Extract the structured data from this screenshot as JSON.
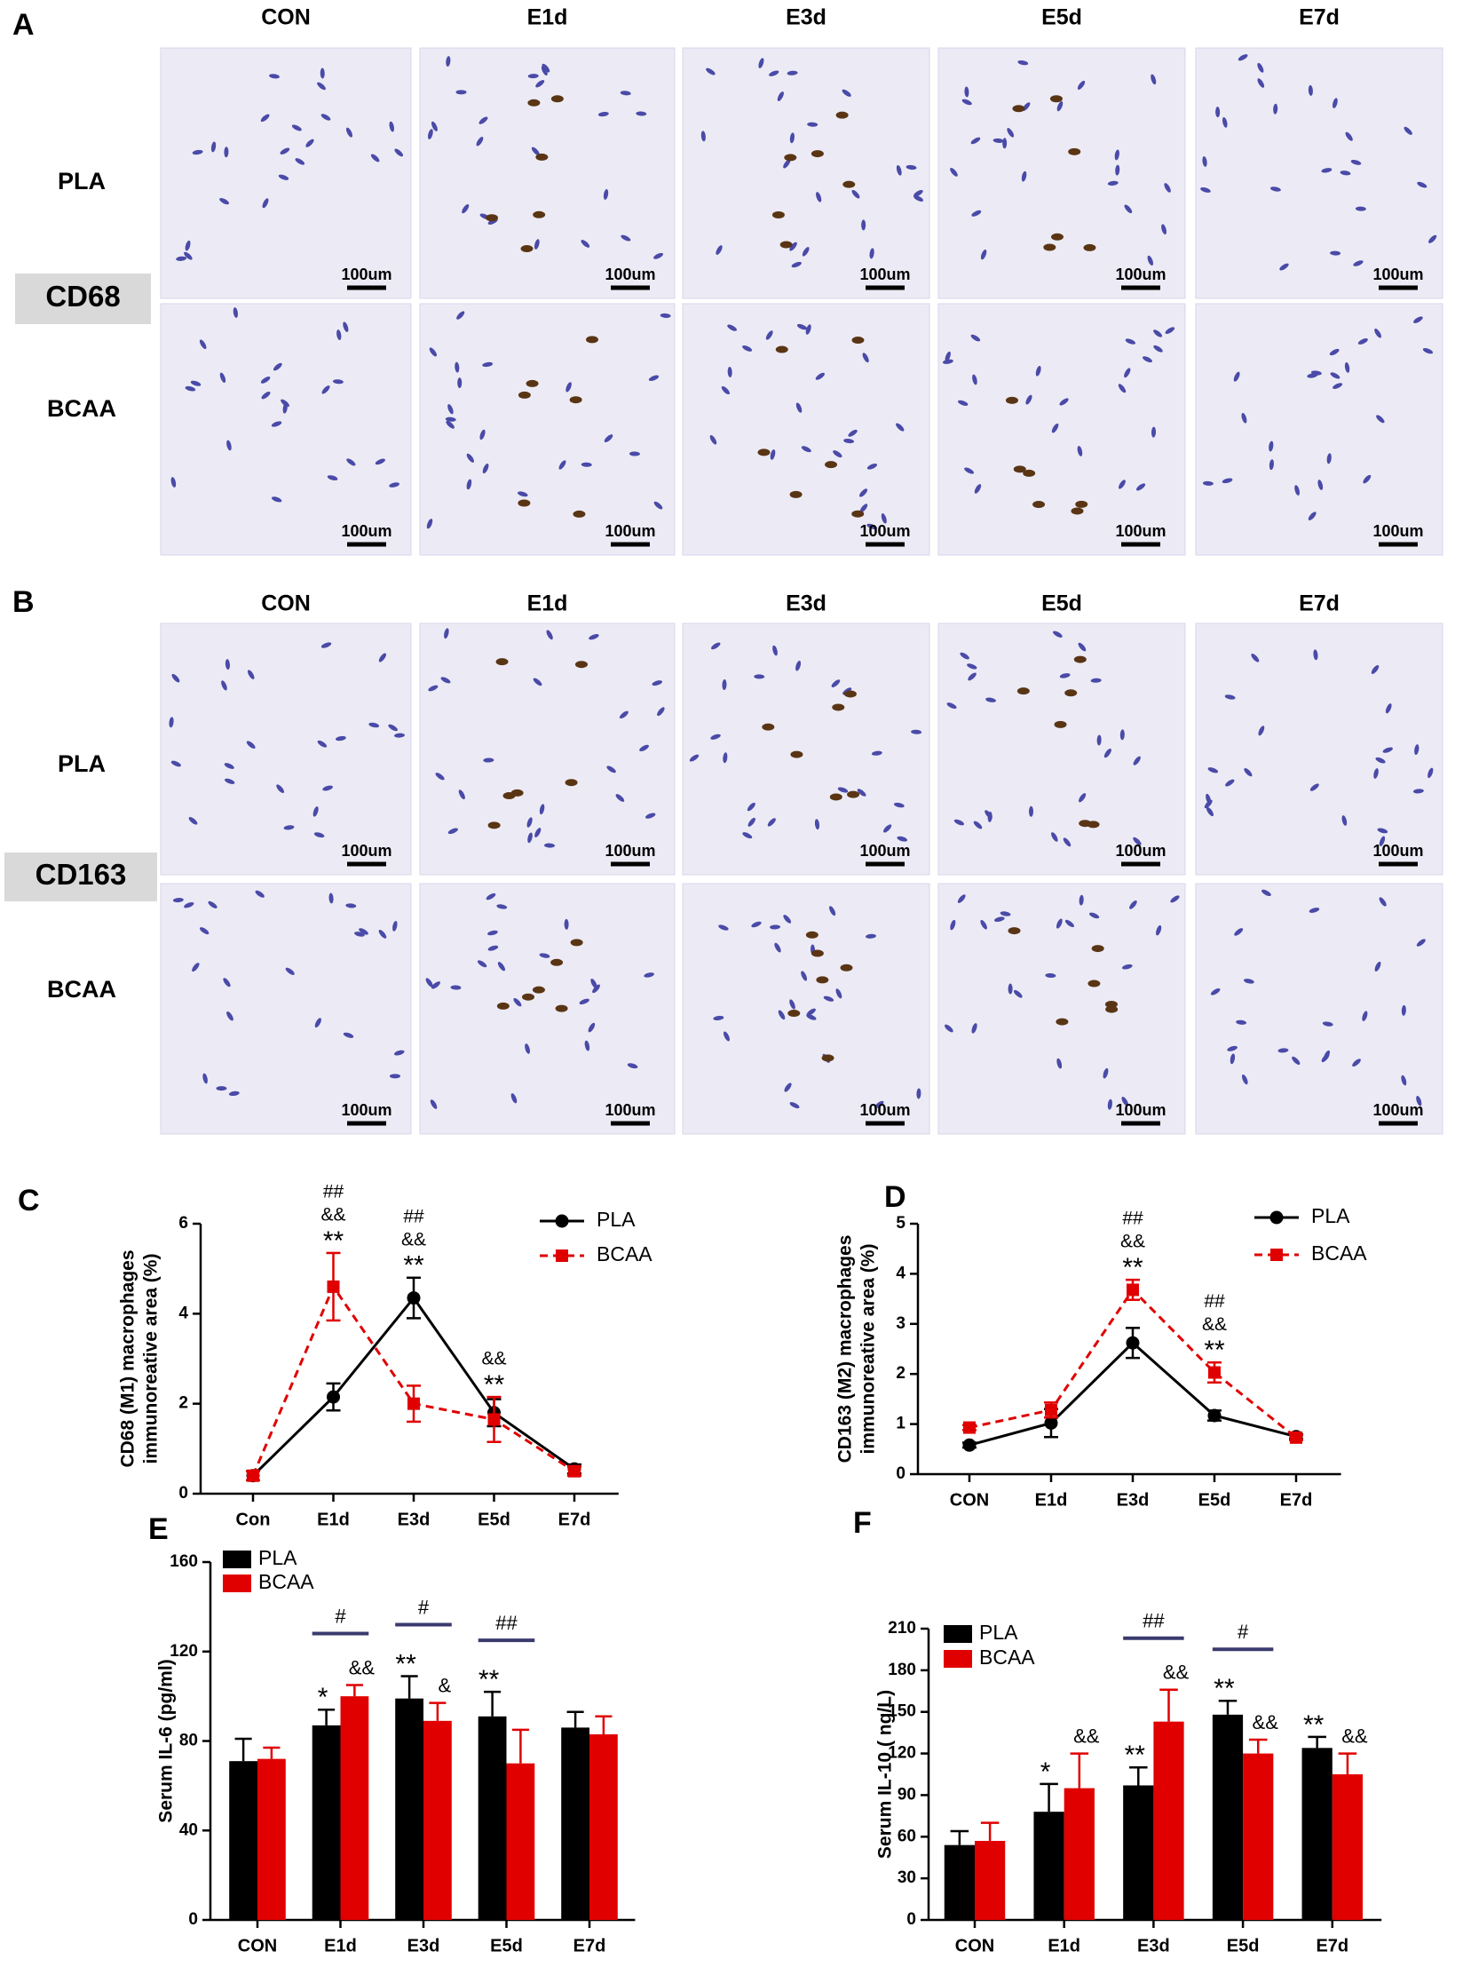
{
  "panel_labels": [
    "A",
    "B",
    "C",
    "D",
    "E",
    "F"
  ],
  "micrographs": {
    "columns": [
      "CON",
      "E1d",
      "E3d",
      "E5d",
      "E7d"
    ],
    "rows": [
      "PLA",
      "BCAA"
    ],
    "markers": [
      "CD68",
      "CD163"
    ],
    "scale_bar": "100um"
  },
  "chart_data": [
    {
      "type": "line",
      "y_label": [
        "CD68 (M1) macrophages",
        "immunoreative area (%)"
      ],
      "categories": [
        "Con",
        "E1d",
        "E3d",
        "E5d",
        "E7d"
      ],
      "ylim": [
        0,
        6
      ],
      "yticks": [
        0,
        2,
        4,
        6
      ],
      "series": [
        {
          "name": "PLA",
          "color": "#000000",
          "linestyle": "solid",
          "marker": "circle",
          "values": [
            0.4,
            2.15,
            4.35,
            1.8,
            0.55
          ],
          "errors": [
            0.1,
            0.3,
            0.45,
            0.3,
            0.1
          ]
        },
        {
          "name": "BCAA",
          "color": "#e00000",
          "linestyle": "dashed",
          "marker": "square",
          "values": [
            0.4,
            4.6,
            2.0,
            1.65,
            0.5
          ],
          "errors": [
            0.1,
            0.75,
            0.4,
            0.5,
            0.1
          ]
        }
      ],
      "annotations": [
        null,
        [
          "##",
          "&&",
          "**"
        ],
        [
          "##",
          "&&",
          "**"
        ],
        [
          "&&",
          "**"
        ],
        null
      ]
    },
    {
      "type": "line",
      "y_label": [
        "CD163 (M2) macrophages",
        "immunoreative area (%)"
      ],
      "categories": [
        "CON",
        "E1d",
        "E3d",
        "E5d",
        "E7d"
      ],
      "ylim": [
        0,
        5
      ],
      "yticks": [
        0,
        1,
        2,
        3,
        4,
        5
      ],
      "series": [
        {
          "name": "PLA",
          "color": "#000000",
          "linestyle": "solid",
          "marker": "circle",
          "values": [
            0.58,
            1.02,
            2.62,
            1.17,
            0.75
          ],
          "errors": [
            0.05,
            0.28,
            0.3,
            0.1,
            0.05
          ]
        },
        {
          "name": "BCAA",
          "color": "#e00000",
          "linestyle": "dashed",
          "marker": "square",
          "values": [
            0.93,
            1.28,
            3.68,
            2.03,
            0.73
          ],
          "errors": [
            0.05,
            0.15,
            0.2,
            0.2,
            0.05
          ]
        }
      ],
      "annotations": [
        null,
        null,
        [
          "##",
          "&&",
          "**"
        ],
        [
          "##",
          "&&",
          "**"
        ],
        null
      ]
    },
    {
      "type": "bar",
      "y_label": [
        "Serum IL-6 (pg/ml)"
      ],
      "categories": [
        "CON",
        "E1d",
        "E3d",
        "E5d",
        "E7d"
      ],
      "ylim": [
        0,
        160
      ],
      "yticks": [
        0,
        40,
        80,
        120,
        160
      ],
      "series": [
        {
          "name": "PLA",
          "color": "#000000",
          "values": [
            71,
            87,
            99,
            91,
            86
          ],
          "errors": [
            10,
            7,
            10,
            11,
            7
          ],
          "annotations": [
            null,
            "*",
            "**",
            "**",
            null
          ]
        },
        {
          "name": "BCAA",
          "color": "#e00000",
          "values": [
            72,
            100,
            89,
            70,
            83
          ],
          "errors": [
            5,
            5,
            8,
            15,
            8
          ],
          "annotations": [
            null,
            "&&",
            "&",
            null,
            null
          ]
        }
      ],
      "brackets": [
        null,
        "#",
        "#",
        "##",
        null
      ]
    },
    {
      "type": "bar",
      "y_label": [
        "Serum IL-10 ( ng/L)"
      ],
      "categories": [
        "CON",
        "E1d",
        "E3d",
        "E5d",
        "E7d"
      ],
      "ylim": [
        0,
        210
      ],
      "yticks": [
        0,
        30,
        60,
        90,
        120,
        150,
        180,
        210
      ],
      "series": [
        {
          "name": "PLA",
          "color": "#000000",
          "values": [
            54,
            78,
            97,
            148,
            124
          ],
          "errors": [
            10,
            20,
            13,
            10,
            8
          ],
          "annotations": [
            null,
            "*",
            "**",
            "**",
            "**"
          ]
        },
        {
          "name": "BCAA",
          "color": "#e00000",
          "values": [
            57,
            95,
            143,
            120,
            105
          ],
          "errors": [
            13,
            25,
            23,
            10,
            15
          ],
          "annotations": [
            null,
            "&&",
            "&&",
            "&&",
            "&&"
          ]
        }
      ],
      "brackets": [
        null,
        null,
        "##",
        "#",
        null
      ]
    }
  ]
}
